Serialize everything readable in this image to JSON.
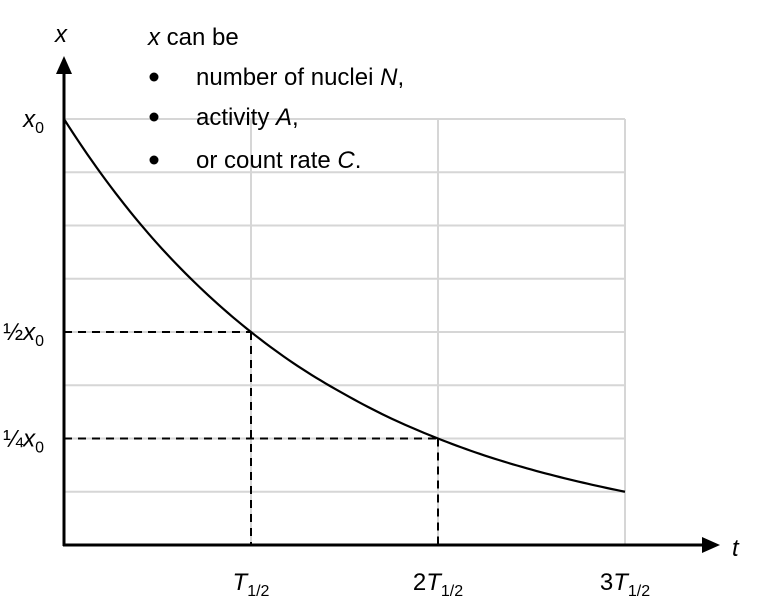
{
  "chart_data": {
    "type": "line",
    "title": "",
    "xlabel": "t",
    "ylabel": "x",
    "x_unit": "T½",
    "xlim": [
      0,
      3
    ],
    "ylim": [
      0,
      1
    ],
    "grid": true,
    "x_ticks": [
      {
        "value": 1,
        "coef": "",
        "sym": "T",
        "sub": "1/2"
      },
      {
        "value": 2,
        "coef": "2",
        "sym": "T",
        "sub": "1/2"
      },
      {
        "value": 3,
        "coef": "3",
        "sym": "T",
        "sub": "1/2"
      }
    ],
    "y_ticks": [
      {
        "value": 1,
        "frac": "",
        "sym": "x",
        "sub": "0"
      },
      {
        "value": 0.5,
        "frac": "½",
        "sym": "x",
        "sub": "0"
      },
      {
        "value": 0.25,
        "frac": "¼",
        "sym": "x",
        "sub": "0"
      }
    ],
    "series": [
      {
        "x": [
          0,
          0.25,
          0.5,
          0.75,
          1,
          1.25,
          1.5,
          1.75,
          2,
          2.25,
          2.5,
          2.75,
          3
        ],
        "y": [
          1,
          0.841,
          0.707,
          0.595,
          0.5,
          0.42,
          0.354,
          0.297,
          0.25,
          0.21,
          0.177,
          0.149,
          0.125
        ]
      }
    ],
    "markers": [
      {
        "x": 1,
        "y": 0.5
      },
      {
        "x": 2,
        "y": 0.25
      }
    ],
    "annotation": {
      "intro_var": "x",
      "intro_rest": " can be",
      "items": [
        {
          "pre": "number of nuclei ",
          "sym": "N",
          "post": ","
        },
        {
          "pre": "activity ",
          "sym": "A",
          "post": ","
        },
        {
          "pre": "or count rate ",
          "sym": "C",
          "post": "."
        }
      ]
    }
  }
}
